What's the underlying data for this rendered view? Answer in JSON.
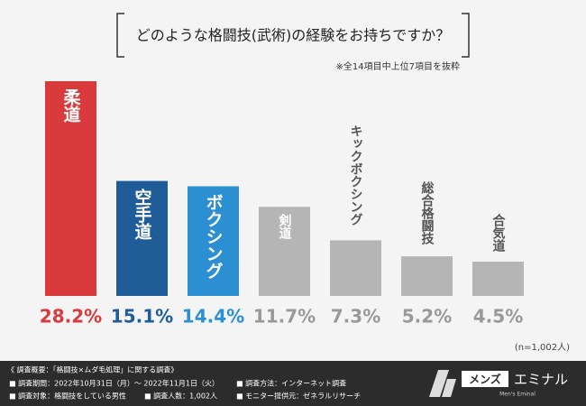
{
  "chart_data": {
    "type": "bar",
    "title": "どのような格闘技(武術)の経験をお持ちですか？",
    "note": "※全14項目中上位7項目を抜粋",
    "sample": "(n=1,002人)",
    "categories": [
      "柔道",
      "空手道",
      "ボクシング",
      "剣道",
      "キックボクシング",
      "総合格闘技",
      "合気道"
    ],
    "values": [
      28.2,
      15.1,
      14.4,
      11.7,
      7.3,
      5.2,
      4.5
    ],
    "value_labels": [
      "28.2%",
      "15.1%",
      "14.4%",
      "11.7%",
      "7.3%",
      "5.2%",
      "4.5%"
    ],
    "colors": [
      "#d93a3c",
      "#1f5c98",
      "#2b8fd1",
      "#b5b5b5",
      "#b5b5b5",
      "#b5b5b5",
      "#b5b5b5"
    ]
  },
  "footer": {
    "heading": "《 調査概要：「格闘技×ムダ毛処理」に関する調査》",
    "items": [
      "■ 調査期間：2022年10月31日（月）～ 2022年11月1日（火）",
      "■ 調査方法：インターネット調査",
      "■ 調査対象：格闘技をしている男性",
      "■ 調査人数：1,002人",
      "■ モニター提供元：ゼネラルリサーチ"
    ],
    "logo": {
      "left": "メンズ",
      "right": "エミナル",
      "sub": "Men's Eminal"
    }
  }
}
